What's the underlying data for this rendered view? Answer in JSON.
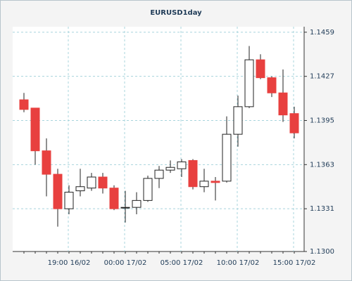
{
  "chart_data": {
    "type": "candlestick",
    "title": "EURUSD1day",
    "categories": [
      null,
      null,
      null,
      null,
      "19:00 16/02",
      null,
      null,
      null,
      null,
      "00:00 17/02",
      null,
      null,
      null,
      null,
      "05:00 17/02",
      null,
      null,
      null,
      null,
      "10:00 17/02",
      null,
      null,
      null,
      null,
      "15:00 17/02"
    ],
    "open": [
      1.141,
      1.1404,
      1.1373,
      1.1356,
      1.1331,
      1.1344,
      1.1346,
      1.1354,
      1.1346,
      1.1332,
      1.1332,
      1.1337,
      1.1353,
      1.1359,
      1.136,
      1.1366,
      1.1347,
      1.1351,
      1.1351,
      1.1385,
      1.1405,
      1.1439,
      1.1426,
      1.1415,
      1.14
    ],
    "high": [
      1.1415,
      1.1404,
      1.1382,
      1.136,
      1.1348,
      1.136,
      1.1357,
      1.1357,
      1.1348,
      1.1344,
      1.1343,
      1.1355,
      1.1362,
      1.1366,
      1.1367,
      1.1367,
      1.136,
      1.1354,
      1.1398,
      1.1413,
      1.1449,
      1.1443,
      1.1427,
      1.1432,
      1.1405
    ],
    "low": [
      1.1401,
      1.1363,
      1.134,
      1.1318,
      1.1327,
      1.134,
      1.1344,
      1.1342,
      1.133,
      1.1321,
      1.1327,
      1.1336,
      1.1346,
      1.1357,
      1.1354,
      1.1345,
      1.1343,
      1.1337,
      1.135,
      1.1376,
      1.1404,
      1.1425,
      1.1412,
      1.1394,
      1.1382
    ],
    "close": [
      1.1403,
      1.1373,
      1.1356,
      1.1331,
      1.1343,
      1.1347,
      1.1354,
      1.1346,
      1.1331,
      1.1332,
      1.1337,
      1.1353,
      1.1359,
      1.1361,
      1.1365,
      1.1347,
      1.1351,
      1.135,
      1.1385,
      1.1405,
      1.1439,
      1.1426,
      1.1415,
      1.1399,
      1.1386
    ],
    "up_color": "#ffffff",
    "down_color": "#e8403f",
    "ylim": [
      1.13,
      1.1463
    ],
    "yticks": [
      {
        "value": 1.13,
        "label": "1.1300"
      },
      1.1331,
      1.1363,
      1.1395,
      1.1427,
      1.1459
    ],
    "grid": true
  }
}
